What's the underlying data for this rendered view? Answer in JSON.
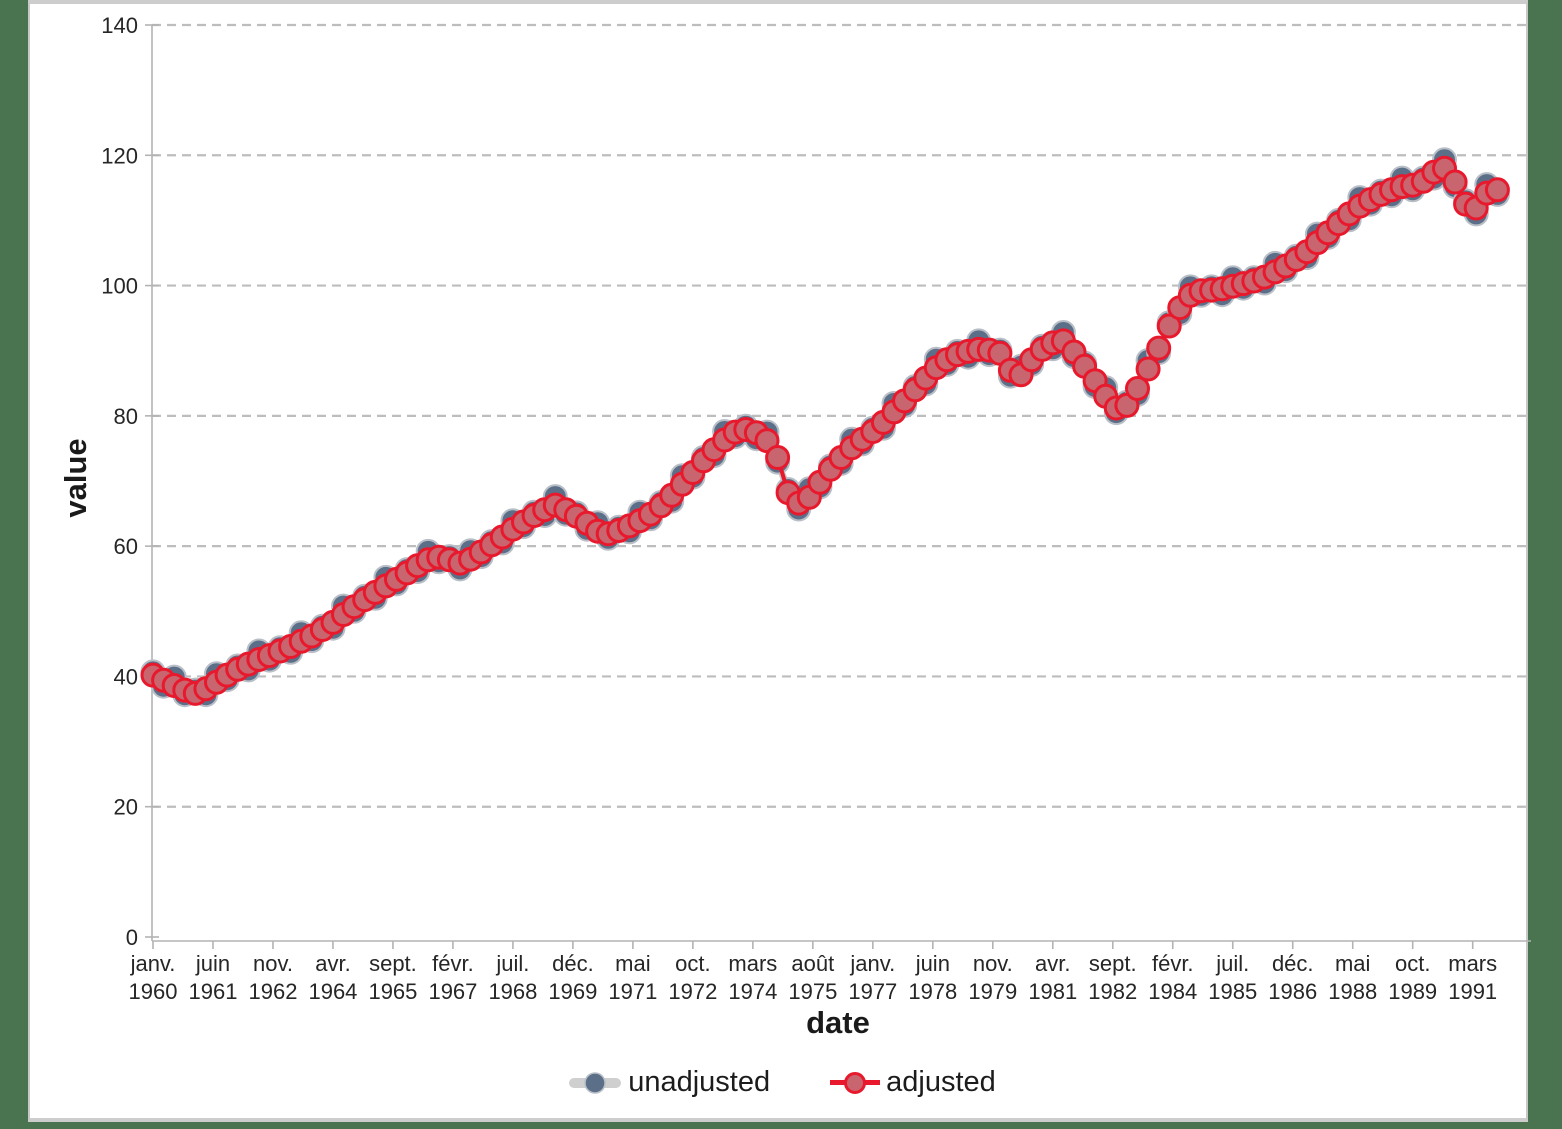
{
  "chart_data": {
    "type": "line",
    "frequency": "quarterly",
    "period_start": "1960Q1",
    "period_end": "1991Q4",
    "grid": "horizontal-dashed",
    "legend_position": "bottom-center",
    "xlabel": "date",
    "ylabel": "value",
    "ylim": [
      0,
      140
    ],
    "y_ticks": [
      0,
      20,
      40,
      60,
      80,
      100,
      120,
      140
    ],
    "x_tick_months": [
      "janv.",
      "juin",
      "nov.",
      "avr.",
      "sept.",
      "févr.",
      "juil.",
      "déc.",
      "mai",
      "oct.",
      "mars",
      "août",
      "janv.",
      "juin",
      "nov.",
      "avr.",
      "sept.",
      "févr.",
      "juil.",
      "déc.",
      "mai",
      "oct.",
      "mars"
    ],
    "x_tick_years": [
      "1960",
      "1961",
      "1962",
      "1964",
      "1965",
      "1967",
      "1968",
      "1969",
      "1971",
      "1972",
      "1974",
      "1975",
      "1977",
      "1978",
      "1979",
      "1981",
      "1982",
      "1984",
      "1985",
      "1986",
      "1988",
      "1989",
      "1991"
    ],
    "x_tick_interval_months": 17,
    "series": [
      {
        "name": "unadjusted",
        "marker_color": "#5c6f89",
        "marker_edge_color": "#b9bfc7",
        "line_color": "#c9c9c9",
        "values": [
          40.7,
          38.5,
          39.9,
          37.2,
          37.9,
          37.2,
          40.4,
          39.5,
          41.6,
          41.0,
          43.9,
          42.5,
          44.4,
          43.7,
          46.7,
          45.5,
          47.7,
          47.4,
          50.8,
          50.0,
          52.3,
          52.0,
          55.2,
          54.2,
          56.4,
          56.1,
          59.2,
          57.6,
          58.4,
          56.5,
          59.3,
          58.4,
          60.7,
          60.5,
          63.9,
          63.0,
          65.2,
          64.7,
          67.6,
          64.9,
          65.1,
          62.6,
          63.6,
          61.2,
          62.9,
          62.2,
          65.2,
          64.2,
          66.7,
          66.9,
          70.8,
          70.6,
          73.6,
          73.9,
          77.6,
          76.8,
          78.4,
          76.5,
          77.5,
          72.9,
          68.7,
          65.7,
          68.8,
          69.1,
          72.3,
          72.7,
          76.4,
          75.7,
          78.1,
          78.1,
          81.9,
          81.6,
          84.5,
          84.9,
          88.7,
          87.9,
          89.9,
          89.0,
          91.5,
          89.4,
          90.1,
          86.1,
          87.6,
          87.9,
          90.7,
          90.3,
          92.8,
          89.1,
          88.1,
          84.5,
          84.3,
          80.5,
          82.1,
          83.3,
          88.5,
          89.7,
          94.3,
          95.7,
          99.8,
          98.5,
          99.8,
          98.6,
          101.2,
          99.6,
          101.2,
          100.4,
          103.4,
          102.3,
          104.5,
          104.3,
          107.9,
          107.4,
          110.0,
          110.1,
          113.5,
          112.5,
          114.5,
          113.8,
          116.5,
          114.7,
          116.5,
          116.5,
          119.3,
          115.2,
          113.0,
          111.0,
          115.5,
          114.0
        ]
      },
      {
        "name": "adjusted",
        "marker_color": "#c8656f",
        "marker_edge_color": "#e8192c",
        "line_color": "#e8192c",
        "values": [
          40.2,
          39.4,
          38.6,
          37.9,
          37.4,
          38.1,
          39.1,
          40.2,
          41.1,
          41.9,
          42.6,
          43.2,
          43.9,
          44.6,
          45.4,
          46.2,
          47.2,
          48.3,
          49.5,
          50.7,
          51.8,
          52.9,
          53.9,
          54.9,
          55.9,
          57.0,
          57.9,
          58.3,
          57.9,
          57.4,
          58.0,
          59.1,
          60.2,
          61.4,
          62.6,
          63.7,
          64.7,
          65.6,
          66.3,
          65.6,
          64.6,
          63.5,
          62.3,
          61.9,
          62.4,
          63.1,
          63.9,
          64.9,
          66.2,
          67.8,
          69.5,
          71.3,
          73.1,
          74.8,
          76.3,
          77.5,
          77.9,
          77.4,
          76.2,
          73.6,
          68.2,
          66.6,
          67.5,
          69.8,
          71.8,
          73.6,
          75.1,
          76.4,
          77.6,
          79.0,
          80.6,
          82.3,
          84.0,
          85.8,
          87.4,
          88.6,
          89.4,
          89.9,
          90.2,
          90.1,
          89.6,
          87.0,
          86.3,
          88.6,
          90.2,
          91.2,
          91.5,
          89.8,
          87.6,
          85.4,
          83.0,
          81.2,
          81.6,
          84.2,
          87.2,
          90.4,
          93.8,
          96.6,
          98.5,
          99.2,
          99.3,
          99.5,
          99.9,
          100.3,
          100.7,
          101.3,
          102.1,
          103.0,
          104.0,
          105.2,
          106.6,
          108.1,
          109.5,
          111.0,
          112.2,
          113.2,
          114.0,
          114.7,
          115.2,
          115.4,
          116.0,
          117.4,
          118.0,
          115.9,
          112.5,
          111.9,
          114.2,
          114.7
        ]
      }
    ]
  },
  "axes": {
    "y_title": "value",
    "x_title": "date"
  },
  "legend": {
    "items": [
      {
        "label": "unadjusted"
      },
      {
        "label": "adjusted"
      }
    ]
  },
  "colors": {
    "page_background": "#4a7350",
    "panel_background": "#ffffff",
    "panel_border": "#cdcdcd",
    "gridline": "#bdbdbd",
    "axis_line": "#b3b3b3",
    "tick_text": "#262626",
    "title_text": "#1a1a1a",
    "unadjusted_marker": "#5c6f89",
    "unadjusted_line": "#c9c9c9",
    "adjusted_marker_fill": "#c8656f",
    "adjusted_red": "#e8192c"
  }
}
